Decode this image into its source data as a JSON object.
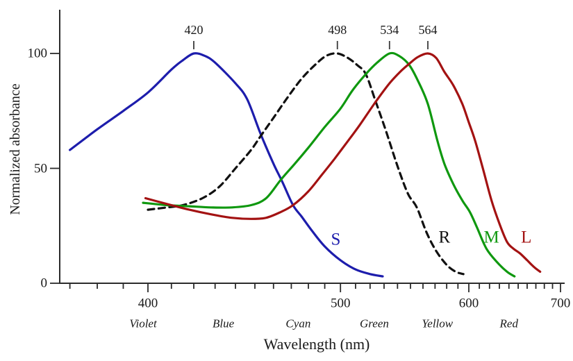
{
  "chart_data": {
    "type": "line",
    "title": "",
    "xlabel": "Wavelength (nm)",
    "ylabel": "Normalized absorbance",
    "x_scale": "reciprocal-wavelength (linear in 1/nm)",
    "x_range_nm": [
      366,
      705
    ],
    "x_major_ticks_nm": [
      400,
      500,
      600,
      700
    ],
    "x_minor_tick_step_nm": 10,
    "x_minor_tick_range_nm": [
      370,
      700
    ],
    "y_range": [
      0,
      100
    ],
    "y_ticks": [
      0,
      50,
      100
    ],
    "grid": false,
    "axis_color": "#2b2b2b",
    "text_color": "#1a1a1a",
    "spectrum_color_names": [
      {
        "label": "Violet",
        "nm": 398
      },
      {
        "label": "Blue",
        "nm": 434
      },
      {
        "label": "Cyan",
        "nm": 474
      },
      {
        "label": "Green",
        "nm": 523
      },
      {
        "label": "Yellow",
        "nm": 572
      },
      {
        "label": "Red",
        "nm": 640
      }
    ],
    "series": [
      {
        "id": "S",
        "letter": "S",
        "color": "#1d1dac",
        "dashed": false,
        "peak_nm": 420,
        "peak_label": "420",
        "letter_anchor": {
          "nm": 497,
          "value": 19
        },
        "points": [
          [
            370,
            58
          ],
          [
            380,
            67
          ],
          [
            390,
            75
          ],
          [
            400,
            83
          ],
          [
            410,
            93
          ],
          [
            415,
            97
          ],
          [
            420,
            100
          ],
          [
            425,
            99
          ],
          [
            430,
            96
          ],
          [
            440,
            87
          ],
          [
            446,
            80
          ],
          [
            453,
            65
          ],
          [
            460,
            52
          ],
          [
            465,
            44
          ],
          [
            471,
            34
          ],
          [
            476,
            29
          ],
          [
            482,
            23
          ],
          [
            490,
            16
          ],
          [
            500,
            10
          ],
          [
            510,
            6
          ],
          [
            520,
            4
          ],
          [
            529,
            3
          ]
        ]
      },
      {
        "id": "R",
        "letter": "R",
        "color": "#111111",
        "dashed": true,
        "peak_nm": 498,
        "peak_label": "498",
        "letter_anchor": {
          "nm": 578,
          "value": 20
        },
        "points": [
          [
            400,
            32
          ],
          [
            408,
            33
          ],
          [
            415,
            34
          ],
          [
            424,
            37
          ],
          [
            432,
            42
          ],
          [
            440,
            50
          ],
          [
            448,
            58
          ],
          [
            453,
            64
          ],
          [
            460,
            72
          ],
          [
            468,
            81
          ],
          [
            476,
            89
          ],
          [
            484,
            95
          ],
          [
            491,
            99
          ],
          [
            498,
            100
          ],
          [
            505,
            98
          ],
          [
            511,
            95
          ],
          [
            517,
            91
          ],
          [
            524,
            79
          ],
          [
            531,
            67
          ],
          [
            540,
            51
          ],
          [
            548,
            39
          ],
          [
            555,
            33
          ],
          [
            563,
            22
          ],
          [
            571,
            14
          ],
          [
            580,
            8
          ],
          [
            588,
            5
          ],
          [
            595,
            4
          ]
        ]
      },
      {
        "id": "M",
        "letter": "M",
        "color": "#0f980f",
        "dashed": false,
        "peak_nm": 534,
        "peak_label": "534",
        "letter_anchor": {
          "nm": 622,
          "value": 20
        },
        "points": [
          [
            398,
            35
          ],
          [
            408,
            34
          ],
          [
            418,
            33.5
          ],
          [
            428,
            33
          ],
          [
            438,
            33
          ],
          [
            448,
            34
          ],
          [
            456,
            37
          ],
          [
            464,
            45
          ],
          [
            472,
            52
          ],
          [
            480,
            59
          ],
          [
            490,
            68
          ],
          [
            500,
            76
          ],
          [
            508,
            84
          ],
          [
            517,
            91
          ],
          [
            525,
            96
          ],
          [
            534,
            100
          ],
          [
            541,
            99
          ],
          [
            549,
            95
          ],
          [
            556,
            88
          ],
          [
            564,
            78
          ],
          [
            572,
            62
          ],
          [
            578,
            52
          ],
          [
            586,
            43
          ],
          [
            594,
            36
          ],
          [
            601,
            31
          ],
          [
            608,
            24
          ],
          [
            617,
            15
          ],
          [
            628,
            9
          ],
          [
            638,
            5
          ],
          [
            646,
            3
          ]
        ]
      },
      {
        "id": "L",
        "letter": "L",
        "color": "#a31212",
        "dashed": false,
        "peak_nm": 564,
        "peak_label": "564",
        "letter_anchor": {
          "nm": 659,
          "value": 20
        },
        "points": [
          [
            399,
            37
          ],
          [
            408,
            34.5
          ],
          [
            418,
            32
          ],
          [
            428,
            30
          ],
          [
            438,
            28.5
          ],
          [
            448,
            28
          ],
          [
            456,
            28.5
          ],
          [
            464,
            31
          ],
          [
            471,
            34
          ],
          [
            480,
            40
          ],
          [
            488,
            47
          ],
          [
            496,
            54
          ],
          [
            505,
            62
          ],
          [
            513,
            69
          ],
          [
            524,
            79
          ],
          [
            534,
            87
          ],
          [
            542,
            92
          ],
          [
            549,
            95.5
          ],
          [
            556,
            98.5
          ],
          [
            564,
            100
          ],
          [
            571,
            98
          ],
          [
            578,
            92
          ],
          [
            586,
            86
          ],
          [
            594,
            78
          ],
          [
            600,
            70
          ],
          [
            606,
            62
          ],
          [
            614,
            49
          ],
          [
            622,
            36
          ],
          [
            630,
            26
          ],
          [
            638,
            18
          ],
          [
            645,
            15
          ],
          [
            652,
            13
          ],
          [
            660,
            10
          ],
          [
            668,
            7
          ],
          [
            675,
            5
          ]
        ]
      }
    ]
  }
}
